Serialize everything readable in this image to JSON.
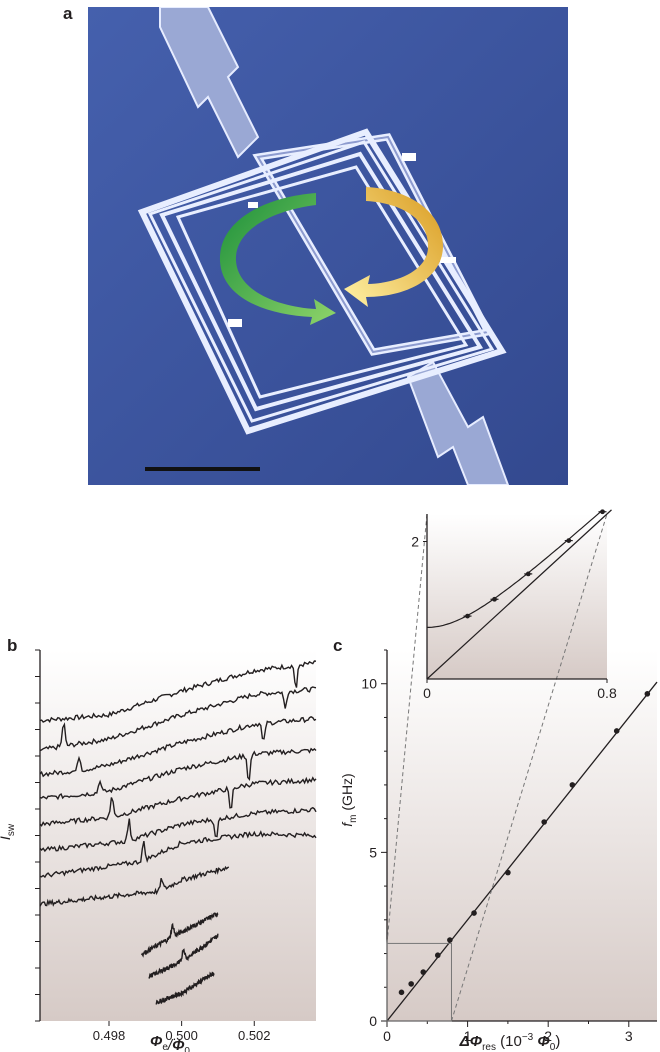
{
  "figure": {
    "panel_a": {
      "letter": "a"
    },
    "panel_b": {
      "letter": "b"
    },
    "panel_c": {
      "letter": "c"
    },
    "colors": {
      "micrograph_background": "#3d55a0",
      "arrow_green": "#3fae49",
      "arrow_yellow": "#f2c94c",
      "plot_gradient_top": "#ffffff",
      "plot_gradient_bottom": "#d6cac6"
    }
  },
  "chart_data": [
    {
      "type": "line",
      "panel": "b",
      "xlabel": "Φe/Φ0",
      "ylabel": "Isw",
      "xlim": [
        0.4961,
        0.5037
      ],
      "xticks": [
        0.498,
        0.5,
        0.502
      ],
      "xtick_labels": [
        "0.498",
        "0.500",
        "0.502"
      ],
      "y_tick_labels_shown": false,
      "grid": false,
      "series": [
        {
          "x": [
            0.4961,
            0.498,
            0.5,
            0.502,
            0.5037
          ],
          "y": [
            16.2,
            16.5,
            17.8,
            18.9,
            19.3
          ],
          "dips": [
            [
              0.50315,
              -1.3
            ]
          ]
        },
        {
          "x": [
            0.4961,
            0.4967,
            0.498,
            0.5,
            0.502,
            0.5037
          ],
          "y": [
            14.6,
            14.8,
            15.2,
            16.5,
            17.6,
            17.9
          ],
          "peaks": [
            [
              0.49675,
              1.3
            ]
          ],
          "dips": [
            [
              0.50285,
              -0.9
            ]
          ]
        },
        {
          "x": [
            0.4961,
            0.4972,
            0.498,
            0.5,
            0.502,
            0.5037
          ],
          "y": [
            13.3,
            13.5,
            13.8,
            15.0,
            16.0,
            16.3
          ],
          "peaks": [
            [
              0.49718,
              0.8
            ]
          ],
          "dips": [
            [
              0.50225,
              -1.1
            ]
          ]
        },
        {
          "x": [
            0.4961,
            0.4977,
            0.498,
            0.5,
            0.502,
            0.5037
          ],
          "y": [
            12.0,
            12.3,
            12.4,
            13.6,
            14.4,
            14.6
          ],
          "peaks": [
            [
              0.49775,
              0.7
            ]
          ],
          "dips": [
            [
              0.50185,
              -1.5
            ]
          ]
        },
        {
          "x": [
            0.4961,
            0.4981,
            0.5,
            0.502,
            0.5037
          ],
          "y": [
            10.6,
            11.0,
            12.0,
            12.8,
            13.0
          ],
          "peaks": [
            [
              0.49808,
              1.2
            ]
          ],
          "dips": [
            [
              0.50135,
              -1.3
            ]
          ]
        },
        {
          "x": [
            0.4961,
            0.4985,
            0.5,
            0.502,
            0.5037
          ],
          "y": [
            9.2,
            9.7,
            10.6,
            11.2,
            11.4
          ],
          "peaks": [
            [
              0.49855,
              1.1
            ]
          ],
          "dips": [
            [
              0.50095,
              -1.2
            ]
          ]
        },
        {
          "x": [
            0.4961,
            0.4989,
            0.5,
            0.502,
            0.5037
          ],
          "y": [
            7.8,
            8.6,
            9.6,
            10.1,
            10.0
          ],
          "peaks": [
            [
              0.49895,
              1.0
            ]
          ]
        },
        {
          "x": [
            0.4961,
            0.4994,
            0.5,
            0.5013
          ],
          "y": [
            6.3,
            7.0,
            7.6,
            8.3
          ],
          "peaks": [
            [
              0.49945,
              0.6
            ]
          ]
        },
        {
          "x": [
            0.4989,
            0.4998,
            0.501
          ],
          "y": [
            3.6,
            4.6,
            5.8
          ],
          "peaks": [
            [
              0.49975,
              0.6
            ]
          ]
        },
        {
          "x": [
            0.4991,
            0.5,
            0.501
          ],
          "y": [
            2.4,
            3.2,
            4.6
          ],
          "peaks": [
            [
              0.50005,
              0.6
            ]
          ]
        },
        {
          "x": [
            0.4993,
            0.5,
            0.5009
          ],
          "y": [
            1.0,
            1.5,
            2.6
          ]
        }
      ]
    },
    {
      "type": "scatter",
      "panel": "c",
      "xlabel": "ΔΦres (10−3 Φ0)",
      "ylabel": "fm (GHz)",
      "xlim": [
        0,
        3.35
      ],
      "ylim": [
        0,
        11
      ],
      "xticks": [
        0,
        1,
        2,
        3
      ],
      "yticks": [
        0,
        5,
        10
      ],
      "grid": false,
      "points": [
        {
          "x": 0.18,
          "y": 0.85
        },
        {
          "x": 0.3,
          "y": 1.1
        },
        {
          "x": 0.45,
          "y": 1.45
        },
        {
          "x": 0.63,
          "y": 1.95
        },
        {
          "x": 0.78,
          "y": 2.4
        },
        {
          "x": 1.08,
          "y": 3.2
        },
        {
          "x": 1.5,
          "y": 4.4
        },
        {
          "x": 1.95,
          "y": 5.9
        },
        {
          "x": 2.3,
          "y": 7.0
        },
        {
          "x": 2.85,
          "y": 8.6
        },
        {
          "x": 3.23,
          "y": 9.7
        }
      ],
      "fit_line": {
        "x": [
          0,
          3.35
        ],
        "y": [
          0,
          10.05
        ]
      },
      "zoom_box": {
        "x": [
          0,
          0.8
        ],
        "y": [
          0,
          2.3
        ]
      },
      "dashed_lines": [
        {
          "from": [
            0,
            2.3
          ],
          "to_inset": [
            0,
            2.4
          ]
        },
        {
          "from": [
            0.8,
            0
          ],
          "to_inset": [
            0.8,
            2.4
          ]
        }
      ]
    },
    {
      "type": "scatter",
      "panel": "c-inset",
      "xlim": [
        0,
        0.8
      ],
      "ylim": [
        0,
        2.4
      ],
      "xticks": [
        0,
        0.8
      ],
      "xtick_labels": [
        "0",
        "0.8"
      ],
      "yticks": [
        2
      ],
      "ytick_labels": [
        "2"
      ],
      "points": [
        {
          "x": 0.18,
          "y": 0.85
        },
        {
          "x": 0.3,
          "y": 1.1
        },
        {
          "x": 0.45,
          "y": 1.45
        },
        {
          "x": 0.63,
          "y": 1.95
        },
        {
          "x": 0.78,
          "y": 2.4
        }
      ],
      "linear_fit": {
        "x": [
          0,
          0.8
        ],
        "y": [
          0,
          2.4
        ]
      },
      "hyperbolic_fit": {
        "gap": 0.75,
        "slope": 3.0
      }
    }
  ]
}
